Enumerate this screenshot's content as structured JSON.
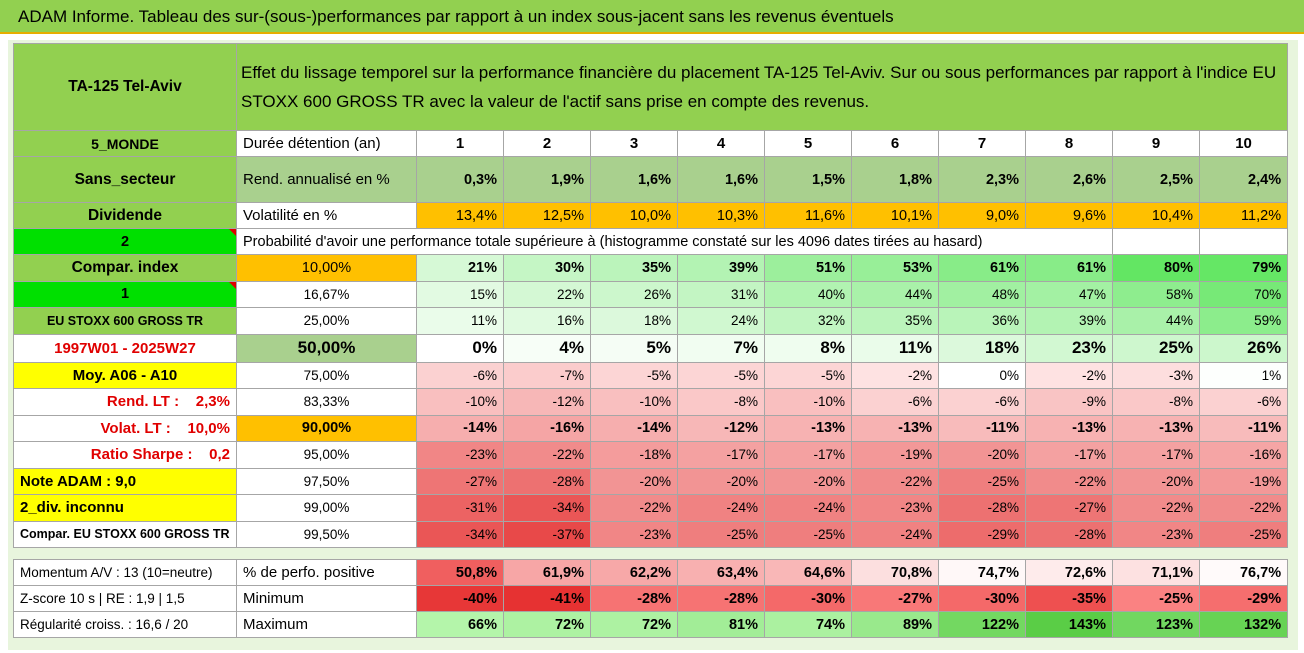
{
  "banner": "ADAM Informe. Tableau des sur-(sous-)performances par rapport à un index sous-jacent sans les revenus éventuels",
  "asset": "TA-125 Tel-Aviv",
  "header_text": "Effet du lissage temporel sur la performance financière du placement TA-125 Tel-Aviv. Sur ou sous performances par rapport à l'indice EU STOXX 600 GROSS TR avec la valeur de l'actif sans prise en compte des revenus.",
  "left_labels": {
    "region": "5_MONDE",
    "sector": "Sans_secteur",
    "dividende": "Dividende",
    "two": "2",
    "compar_index": "Compar. index",
    "one": "1",
    "index_name": "EU STOXX 600 GROSS TR",
    "period": "1997W01 - 2025W27",
    "moy": "Moy. A06 - A10",
    "rend_lt": "Rend. LT :    2,3%",
    "volat_lt": "Volat. LT :    10,0%",
    "sharpe": "Ratio Sharpe :    0,2",
    "note": "Note ADAM : 9,0",
    "div_inconnu": "2_div. inconnu",
    "compar_full": "Compar. EU STOXX 600 GROSS TR"
  },
  "row_labels": {
    "duree": "Durée détention (an)",
    "rend": "Rend. annualisé en %",
    "vol": "Volatilité en %",
    "proba": "Probabilité d'avoir une performance totale supérieure à (histogramme constaté sur les 4096 dates tirées au hasard)"
  },
  "years": [
    "1",
    "2",
    "3",
    "4",
    "5",
    "6",
    "7",
    "8",
    "9",
    "10"
  ],
  "rend": [
    "0,3%",
    "1,9%",
    "1,6%",
    "1,6%",
    "1,5%",
    "1,8%",
    "2,3%",
    "2,6%",
    "2,5%",
    "2,4%"
  ],
  "vol": [
    "13,4%",
    "12,5%",
    "10,0%",
    "10,3%",
    "11,6%",
    "10,1%",
    "9,0%",
    "9,6%",
    "10,4%",
    "11,2%"
  ],
  "quantiles": [
    {
      "label": "10,00%",
      "values": [
        "21%",
        "30%",
        "35%",
        "39%",
        "51%",
        "53%",
        "61%",
        "61%",
        "80%",
        "79%"
      ]
    },
    {
      "label": "16,67%",
      "values": [
        "15%",
        "22%",
        "26%",
        "31%",
        "40%",
        "44%",
        "48%",
        "47%",
        "58%",
        "70%"
      ]
    },
    {
      "label": "25,00%",
      "values": [
        "11%",
        "16%",
        "18%",
        "24%",
        "32%",
        "35%",
        "36%",
        "39%",
        "44%",
        "59%"
      ]
    },
    {
      "label": "50,00%",
      "values": [
        "0%",
        "4%",
        "5%",
        "7%",
        "8%",
        "11%",
        "18%",
        "23%",
        "25%",
        "26%"
      ]
    },
    {
      "label": "75,00%",
      "values": [
        "-6%",
        "-7%",
        "-5%",
        "-5%",
        "-5%",
        "-2%",
        "0%",
        "-2%",
        "-3%",
        "1%"
      ]
    },
    {
      "label": "83,33%",
      "values": [
        "-10%",
        "-12%",
        "-10%",
        "-8%",
        "-10%",
        "-6%",
        "-6%",
        "-9%",
        "-8%",
        "-6%"
      ]
    },
    {
      "label": "90,00%",
      "values": [
        "-14%",
        "-16%",
        "-14%",
        "-12%",
        "-13%",
        "-13%",
        "-11%",
        "-13%",
        "-13%",
        "-11%"
      ]
    },
    {
      "label": "95,00%",
      "values": [
        "-23%",
        "-22%",
        "-18%",
        "-17%",
        "-17%",
        "-19%",
        "-20%",
        "-17%",
        "-17%",
        "-16%"
      ]
    },
    {
      "label": "97,50%",
      "values": [
        "-27%",
        "-28%",
        "-20%",
        "-20%",
        "-20%",
        "-22%",
        "-25%",
        "-22%",
        "-20%",
        "-19%"
      ]
    },
    {
      "label": "99,00%",
      "values": [
        "-31%",
        "-34%",
        "-22%",
        "-24%",
        "-24%",
        "-23%",
        "-28%",
        "-27%",
        "-22%",
        "-22%"
      ]
    },
    {
      "label": "99,50%",
      "values": [
        "-34%",
        "-37%",
        "-23%",
        "-25%",
        "-25%",
        "-24%",
        "-29%",
        "-28%",
        "-23%",
        "-25%"
      ]
    }
  ],
  "bottom": [
    {
      "left": "Momentum A/V : 13 (10=neutre)",
      "label": "% de perfo. positive",
      "values": [
        "50,8%",
        "61,9%",
        "62,2%",
        "63,4%",
        "64,6%",
        "70,8%",
        "74,7%",
        "72,6%",
        "71,1%",
        "76,7%"
      ]
    },
    {
      "left": "Z-score 10 s | RE : 1,9 | 1,5",
      "label": "Minimum",
      "values": [
        "-40%",
        "-41%",
        "-28%",
        "-28%",
        "-30%",
        "-27%",
        "-30%",
        "-35%",
        "-25%",
        "-29%"
      ]
    },
    {
      "left": "Régularité croiss. : 16,6 / 20",
      "label": "Maximum",
      "values": [
        "66%",
        "72%",
        "72%",
        "81%",
        "74%",
        "89%",
        "122%",
        "143%",
        "123%",
        "132%"
      ]
    }
  ]
}
